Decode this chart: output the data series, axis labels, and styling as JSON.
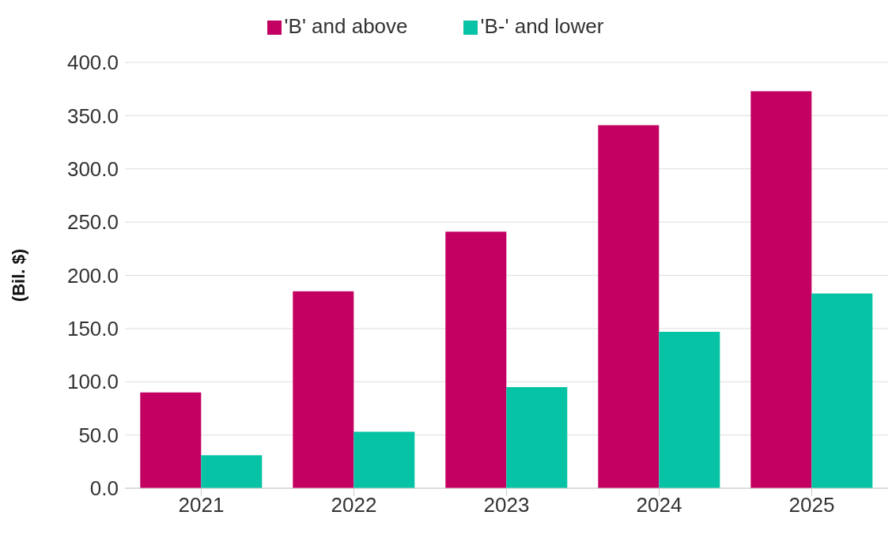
{
  "chart_data": {
    "type": "bar",
    "ylabel": "(Bil. $)",
    "categories": [
      "2021",
      "2022",
      "2023",
      "2024",
      "2025"
    ],
    "series": [
      {
        "name": "'B' and above",
        "color": "#c30062",
        "values": [
          90,
          185,
          241,
          341,
          373
        ]
      },
      {
        "name": "'B-' and lower",
        "color": "#07c3a5",
        "values": [
          31,
          53,
          95,
          147,
          183
        ]
      }
    ],
    "ylim": [
      0,
      400
    ],
    "yticks": [
      {
        "value": 0,
        "label": "0.0"
      },
      {
        "value": 50,
        "label": "50.0"
      },
      {
        "value": 100,
        "label": "100.0"
      },
      {
        "value": 150,
        "label": "150.0"
      },
      {
        "value": 200,
        "label": "200.0"
      },
      {
        "value": 250,
        "label": "250.0"
      },
      {
        "value": 300,
        "label": "300.0"
      },
      {
        "value": 350,
        "label": "350.0"
      },
      {
        "value": 400,
        "label": "400.0"
      }
    ],
    "grid": "y",
    "legend": "top"
  }
}
